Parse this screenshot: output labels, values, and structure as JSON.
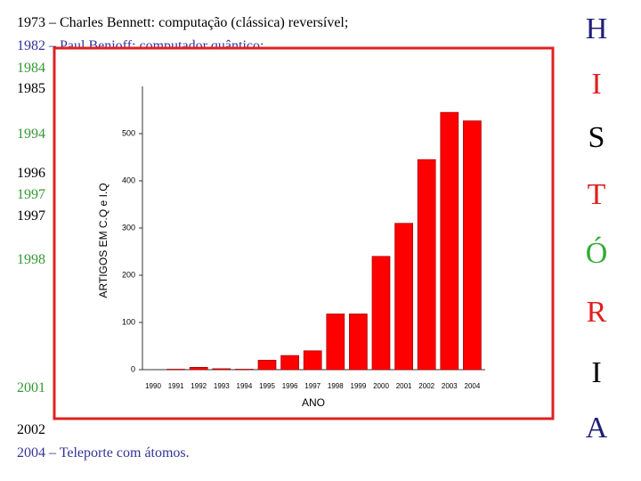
{
  "timeline": {
    "lines": [
      {
        "text": "1973 – Charles Bennett: computação (clássica) reversível;",
        "color": "#000000"
      },
      {
        "text": "1982 – Paul Benioff: computador quântico;",
        "color": "#333399"
      },
      {
        "text": "1984",
        "color": "#339933"
      },
      {
        "text": "1985",
        "color": "#000000"
      },
      {
        "text": "1994",
        "color": "#339933"
      },
      {
        "text": "1996",
        "color": "#000000"
      },
      {
        "text": "1997",
        "color": "#339933"
      },
      {
        "text": "1997",
        "color": "#000000"
      },
      {
        "text": "1998",
        "color": "#339933"
      },
      {
        "text": "2001",
        "color": "#339933"
      },
      {
        "text": "2002",
        "color": "#000000"
      },
      {
        "text": "2004 – Teleporte com átomos.",
        "color": "#333399"
      }
    ]
  },
  "side_letters": [
    {
      "text": "H",
      "color": "#1f1f7a"
    },
    {
      "text": "I",
      "color": "#e02020"
    },
    {
      "text": "S",
      "color": "#000000"
    },
    {
      "text": "T",
      "color": "#e02020"
    },
    {
      "text": "Ó",
      "color": "#33aa33"
    },
    {
      "text": "R",
      "color": "#e02020"
    },
    {
      "text": "I",
      "color": "#000000"
    },
    {
      "text": "A",
      "color": "#1f1f7a"
    }
  ],
  "chart_data": {
    "type": "bar",
    "x_label": "ANO",
    "y_label": "ARTIGOS EM C.Q e I.Q",
    "categories": [
      "1990",
      "1991",
      "1992",
      "1993",
      "1994",
      "1995",
      "1996",
      "1997",
      "1998",
      "1999",
      "2000",
      "2001",
      "2002",
      "2003",
      "2004"
    ],
    "values": [
      0,
      1,
      5,
      2,
      1,
      20,
      30,
      40,
      118,
      118,
      240,
      310,
      445,
      545,
      527
    ],
    "color": "#ff0000",
    "ylim": [
      0,
      600
    ],
    "yticks": [
      0,
      100,
      200,
      300,
      400,
      500
    ]
  }
}
